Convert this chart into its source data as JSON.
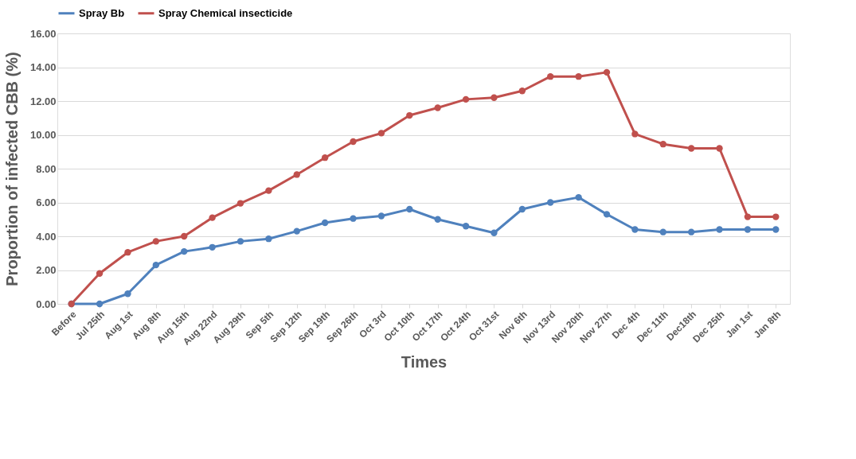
{
  "chart_data": {
    "type": "line",
    "xlabel": "Times",
    "ylabel": "Proportion of infected CBB (%)",
    "categories": [
      "Before",
      "Jul 25th",
      "Aug 1st",
      "Aug 8th",
      "Aug 15th",
      "Aug 22nd",
      "Aug 29th",
      "Sep 5th",
      "Sep 12th",
      "Sep 19th",
      "Sep 26th",
      "Oct 3rd",
      "Oct 10th",
      "Oct  17th",
      "Oct 24th",
      "Oct  31st",
      "Nov 6th",
      "Nov 13rd",
      "Nov 20th",
      "Nov 27th",
      "Dec 4th",
      "Dec 11th",
      "Dec18th",
      "Dec 25th",
      "Jan 1st",
      "Jan 8th"
    ],
    "series": [
      {
        "name": "Spray Bb",
        "color": "#4f81bd",
        "values": [
          0,
          0,
          0.6,
          2.3,
          3.1,
          3.35,
          3.7,
          3.85,
          4.3,
          4.8,
          5.05,
          5.2,
          5.6,
          5.0,
          4.6,
          4.2,
          5.6,
          6.0,
          6.3,
          5.3,
          4.4,
          4.25,
          4.25,
          4.4,
          4.4,
          4.4
        ]
      },
      {
        "name": "Spray Chemical insecticide",
        "color": "#c0504d",
        "values": [
          0,
          1.8,
          3.05,
          3.7,
          4.0,
          5.1,
          5.95,
          6.7,
          7.65,
          8.65,
          9.6,
          10.1,
          11.15,
          11.6,
          12.1,
          12.2,
          12.6,
          13.45,
          13.45,
          13.7,
          10.05,
          9.45,
          9.2,
          9.2,
          5.15,
          5.15
        ]
      }
    ],
    "ylim": [
      0,
      16
    ],
    "yticks": [
      {
        "value": 0,
        "label": "0.00"
      },
      {
        "value": 2,
        "label": "2.00"
      },
      {
        "value": 4,
        "label": "4.00"
      },
      {
        "value": 6,
        "label": "6.00"
      },
      {
        "value": 8,
        "label": "8.00"
      },
      {
        "value": 10,
        "label": "10.00"
      },
      {
        "value": 12,
        "label": "12.00"
      },
      {
        "value": 14,
        "label": "14.00"
      },
      {
        "value": 16,
        "label": "16.00"
      }
    ],
    "grid": "y",
    "legend": "top",
    "marker": "circle",
    "line_style": "solid"
  }
}
